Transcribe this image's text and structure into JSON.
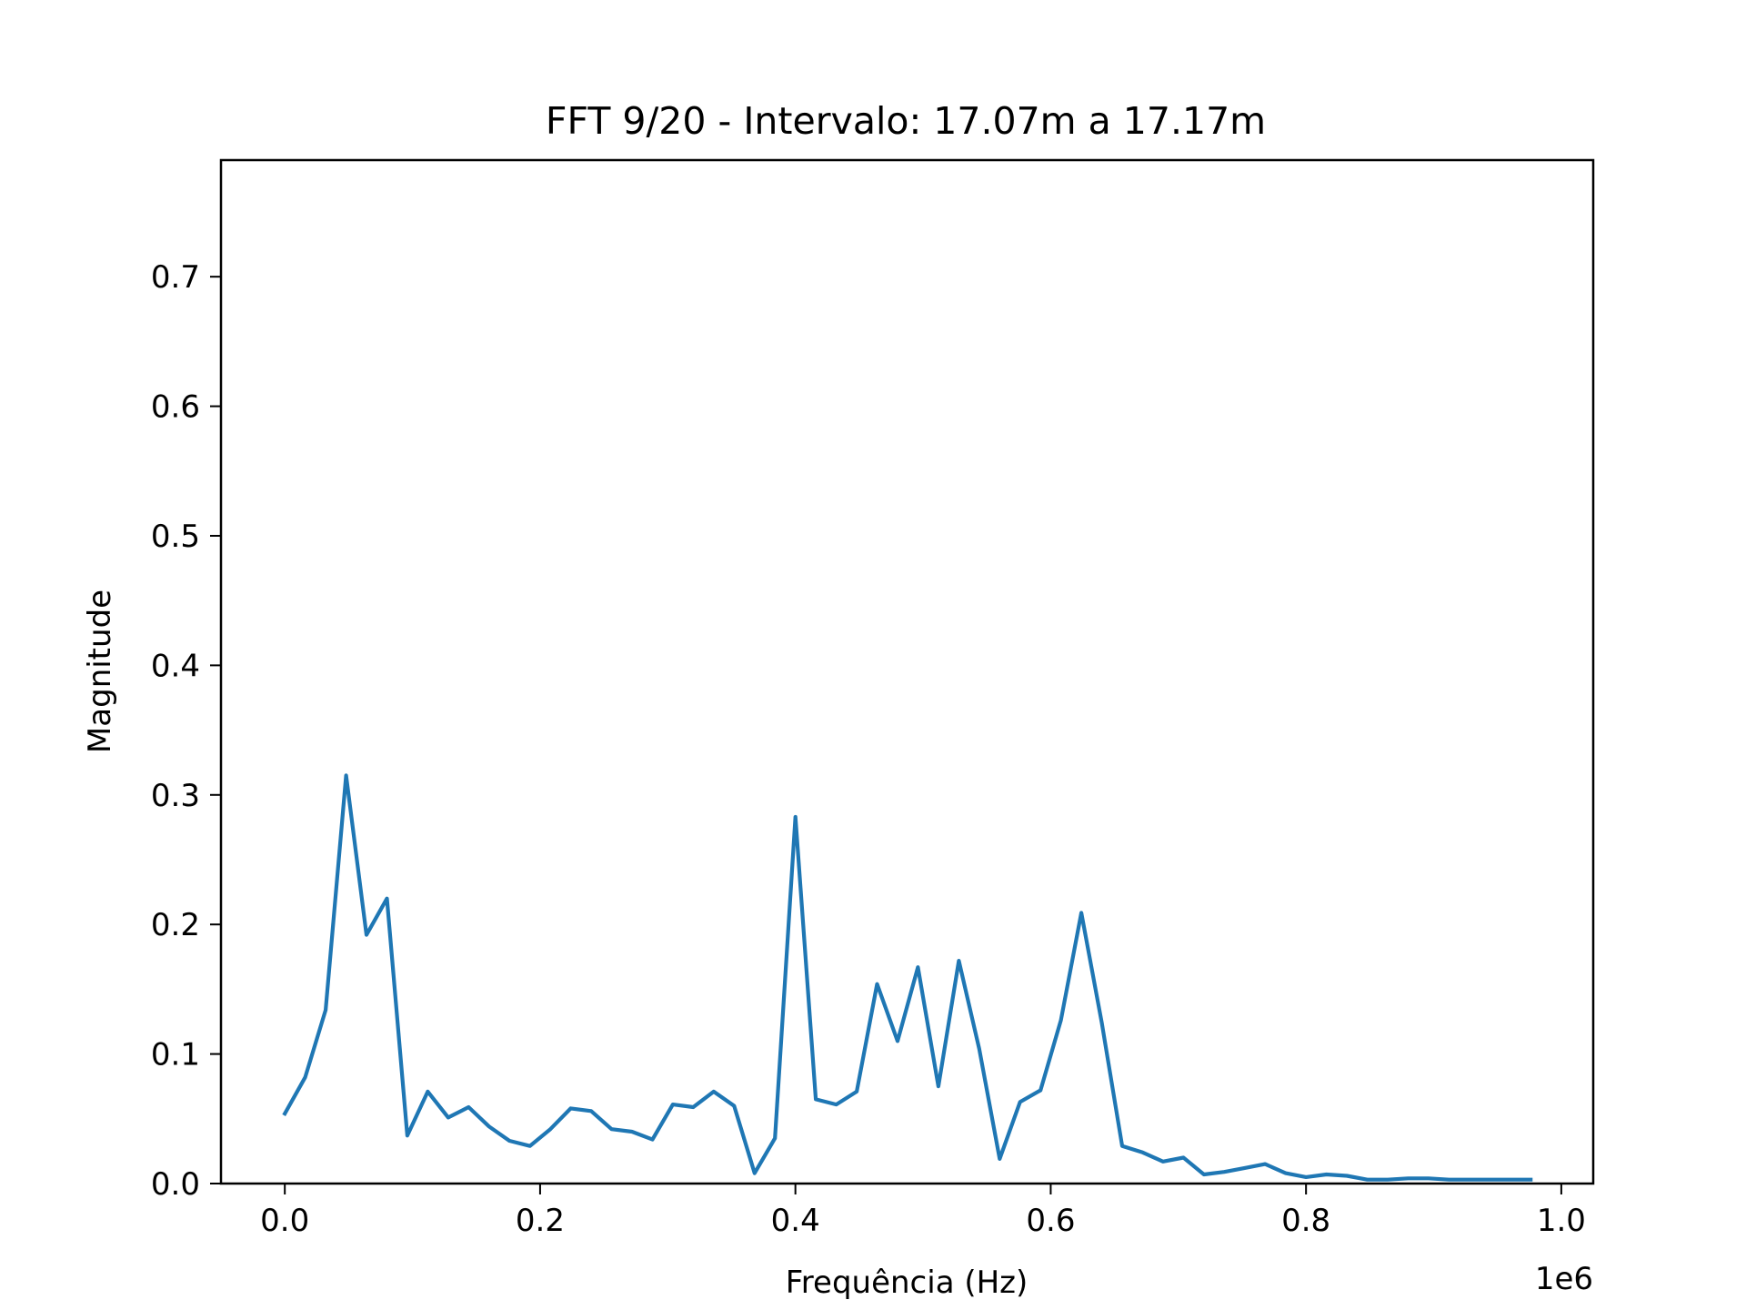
{
  "chart_data": {
    "type": "line",
    "title": "FFT 9/20 - Intervalo: 17.07m a 17.17m",
    "xlabel": "Frequência (Hz)",
    "ylabel": "Magnitude",
    "x_offset_label": "1e6",
    "xlim": [
      -0.05,
      1.025
    ],
    "ylim": [
      0,
      0.79
    ],
    "grid": false,
    "x_ticks": [
      {
        "value": 0.0,
        "label": "0.0"
      },
      {
        "value": 0.2,
        "label": "0.2"
      },
      {
        "value": 0.4,
        "label": "0.4"
      },
      {
        "value": 0.6,
        "label": "0.6"
      },
      {
        "value": 0.8,
        "label": "0.8"
      },
      {
        "value": 1.0,
        "label": "1.0"
      }
    ],
    "y_ticks": [
      {
        "value": 0.0,
        "label": "0.0"
      },
      {
        "value": 0.1,
        "label": "0.1"
      },
      {
        "value": 0.2,
        "label": "0.2"
      },
      {
        "value": 0.3,
        "label": "0.3"
      },
      {
        "value": 0.4,
        "label": "0.4"
      },
      {
        "value": 0.5,
        "label": "0.5"
      },
      {
        "value": 0.6,
        "label": "0.6"
      },
      {
        "value": 0.7,
        "label": "0.7"
      }
    ],
    "series": [
      {
        "color": "#1f77b4",
        "x": [
          0.0,
          0.016,
          0.032,
          0.048,
          0.064,
          0.08,
          0.096,
          0.112,
          0.128,
          0.144,
          0.16,
          0.176,
          0.192,
          0.208,
          0.224,
          0.24,
          0.256,
          0.272,
          0.288,
          0.304,
          0.32,
          0.336,
          0.352,
          0.368,
          0.384,
          0.4,
          0.416,
          0.432,
          0.448,
          0.464,
          0.48,
          0.496,
          0.512,
          0.528,
          0.544,
          0.56,
          0.576,
          0.592,
          0.608,
          0.624,
          0.64,
          0.656,
          0.672,
          0.688,
          0.704,
          0.72,
          0.736,
          0.752,
          0.768,
          0.784,
          0.8,
          0.816,
          0.832,
          0.848,
          0.864,
          0.88,
          0.896,
          0.912,
          0.928,
          0.944,
          0.96,
          0.976
        ],
        "y": [
          0.054,
          0.082,
          0.134,
          0.315,
          0.192,
          0.22,
          0.037,
          0.071,
          0.051,
          0.059,
          0.044,
          0.033,
          0.029,
          0.042,
          0.058,
          0.056,
          0.042,
          0.04,
          0.034,
          0.061,
          0.059,
          0.071,
          0.06,
          0.008,
          0.035,
          0.283,
          0.065,
          0.061,
          0.071,
          0.154,
          0.11,
          0.167,
          0.075,
          0.172,
          0.104,
          0.019,
          0.063,
          0.072,
          0.126,
          0.209,
          0.124,
          0.029,
          0.024,
          0.017,
          0.02,
          0.007,
          0.009,
          0.012,
          0.015,
          0.008,
          0.005,
          0.007,
          0.006,
          0.003,
          0.003,
          0.004,
          0.004,
          0.003,
          0.003,
          0.003,
          0.003,
          0.003
        ]
      }
    ]
  }
}
